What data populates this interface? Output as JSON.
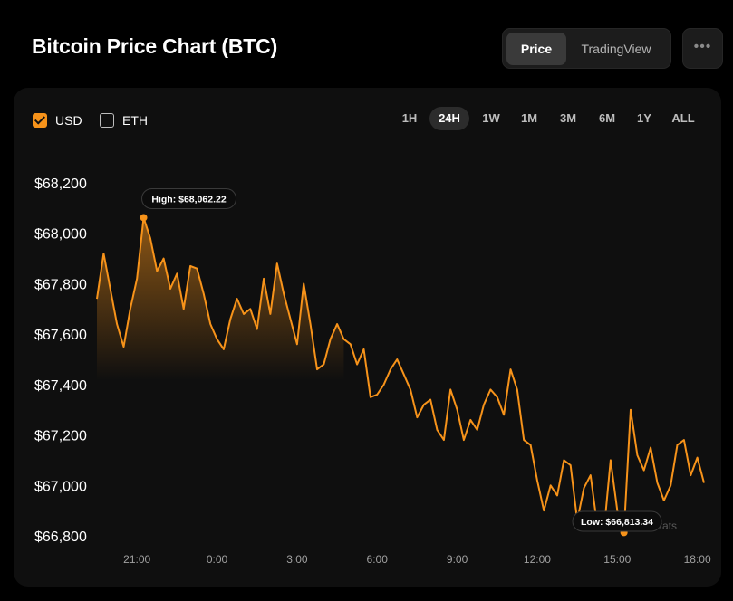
{
  "header": {
    "title": "Bitcoin Price Chart (BTC)"
  },
  "view_toggle": {
    "price": "Price",
    "tradingview": "TradingView"
  },
  "more_icon": "more-horizontal-icon",
  "currencies": [
    {
      "label": "USD",
      "checked": true
    },
    {
      "label": "ETH",
      "checked": false
    }
  ],
  "ranges": [
    "1H",
    "24H",
    "1W",
    "1M",
    "3M",
    "6M",
    "1Y",
    "ALL"
  ],
  "active_range": "24H",
  "colors": {
    "accent": "#f7931a",
    "background": "#000000",
    "card": "#0f0f0f"
  },
  "chart_data": {
    "type": "area",
    "series": [
      {
        "name": "USD"
      }
    ],
    "y_ticks": [
      "$68,200",
      "$68,000",
      "$67,800",
      "$67,600",
      "$67,400",
      "$67,200",
      "$67,000",
      "$66,800"
    ],
    "ylim": [
      66800,
      68200
    ],
    "x_ticks": [
      "21:00",
      "0:00",
      "3:00",
      "6:00",
      "9:00",
      "12:00",
      "15:00",
      "18:00"
    ],
    "x_tick_hours": [
      21,
      24,
      27,
      30,
      33,
      36,
      39,
      42
    ],
    "grid": false,
    "high_label": "High: $68,062.22",
    "low_label": "Low: $66,813.34",
    "watermark": "CoinStats",
    "x": [
      19.5,
      19.75,
      20.0,
      20.25,
      20.5,
      20.75,
      21.0,
      21.25,
      21.5,
      21.75,
      22.0,
      22.25,
      22.5,
      22.75,
      23.0,
      23.25,
      23.5,
      23.75,
      24.0,
      24.25,
      24.5,
      24.75,
      25.0,
      25.25,
      25.5,
      25.75,
      26.0,
      26.25,
      26.5,
      26.75,
      27.0,
      27.25,
      27.5,
      27.75,
      28.0,
      28.25,
      28.5,
      28.75,
      29.0,
      29.25,
      29.5,
      29.75,
      30.0,
      30.25,
      30.5,
      30.75,
      31.0,
      31.25,
      31.5,
      31.75,
      32.0,
      32.25,
      32.5,
      32.75,
      33.0,
      33.25,
      33.5,
      33.75,
      34.0,
      34.25,
      34.5,
      34.75,
      35.0,
      35.25,
      35.5,
      35.75,
      36.0,
      36.25,
      36.5,
      36.75,
      37.0,
      37.25,
      37.5,
      37.75,
      38.0,
      38.25,
      38.5,
      38.75,
      39.0,
      39.25,
      39.5,
      39.75,
      40.0,
      40.25,
      40.5,
      40.75,
      41.0,
      41.25,
      41.5,
      41.75,
      42.0,
      42.25
    ],
    "values": [
      67740,
      67920,
      67780,
      67640,
      67550,
      67700,
      67820,
      68062,
      67980,
      67850,
      67900,
      67780,
      67840,
      67700,
      67870,
      67860,
      67760,
      67640,
      67580,
      67540,
      67660,
      67740,
      67680,
      67700,
      67620,
      67820,
      67680,
      67880,
      67760,
      67660,
      67560,
      67800,
      67640,
      67460,
      67480,
      67580,
      67640,
      67580,
      67560,
      67480,
      67540,
      67350,
      67360,
      67400,
      67460,
      67500,
      67440,
      67380,
      67270,
      67320,
      67340,
      67220,
      67180,
      67380,
      67300,
      67180,
      67260,
      67220,
      67320,
      67380,
      67350,
      67280,
      67460,
      67380,
      67180,
      67160,
      67020,
      66900,
      67000,
      66960,
      67100,
      67080,
      66860,
      66990,
      67040,
      66840,
      66820,
      67100,
      66900,
      66813,
      67300,
      67120,
      67060,
      67150,
      67010,
      66940,
      67000,
      67160,
      67180,
      67040,
      67110,
      67010
    ]
  }
}
